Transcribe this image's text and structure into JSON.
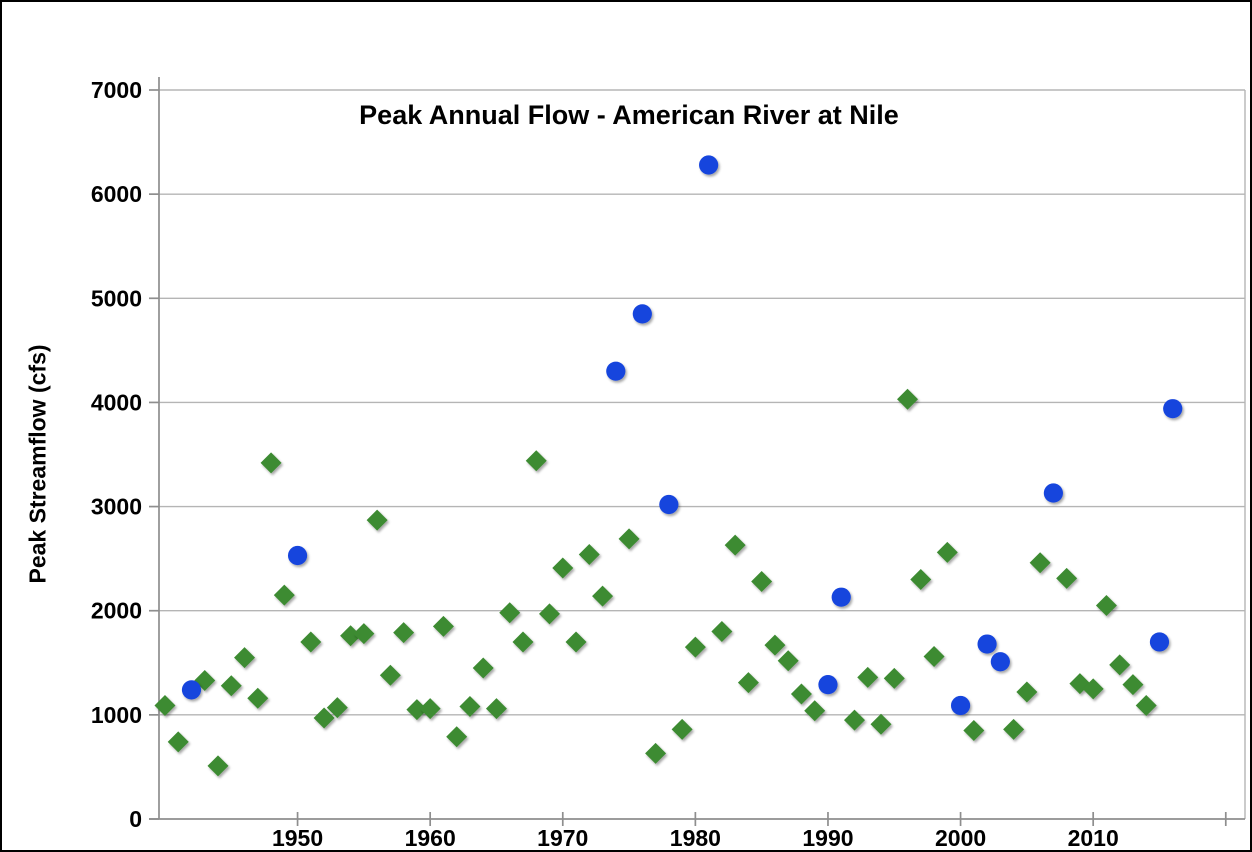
{
  "chart_data": {
    "type": "scatter",
    "title": "Peak Annual Flow - American River at Nile",
    "xlabel": "",
    "ylabel": "Peak Streamflow (cfs)",
    "xlim": [
      1939.55,
      2021.45
    ],
    "ylim": [
      0,
      7000
    ],
    "x_ticks": [
      1950,
      1960,
      1970,
      1980,
      1990,
      2000,
      2010
    ],
    "x_end_tick": 2020,
    "y_ticks": [
      0,
      1000,
      2000,
      3000,
      4000,
      5000,
      6000,
      7000
    ],
    "grid": "horizontal",
    "legend": "none",
    "style": {
      "grid_color": "#b5b5b5",
      "axis_color": "#8e8e8e",
      "text_color": "#000000",
      "background": "#ffffff",
      "green_marker": "#3e8b33",
      "blue_marker": "#1845dd"
    },
    "series": [
      {
        "name": "green-diamonds",
        "marker": "diamond",
        "color": "#3e8b33",
        "points": [
          [
            1940,
            1090
          ],
          [
            1941,
            740
          ],
          [
            1943,
            1330
          ],
          [
            1944,
            510
          ],
          [
            1945,
            1280
          ],
          [
            1946,
            1550
          ],
          [
            1947,
            1160
          ],
          [
            1948,
            3420
          ],
          [
            1949,
            2150
          ],
          [
            1951,
            1700
          ],
          [
            1952,
            970
          ],
          [
            1953,
            1070
          ],
          [
            1954,
            1760
          ],
          [
            1955,
            1780
          ],
          [
            1956,
            2870
          ],
          [
            1957,
            1380
          ],
          [
            1958,
            1790
          ],
          [
            1959,
            1050
          ],
          [
            1960,
            1060
          ],
          [
            1961,
            1850
          ],
          [
            1962,
            790
          ],
          [
            1963,
            1080
          ],
          [
            1964,
            1450
          ],
          [
            1965,
            1060
          ],
          [
            1966,
            1980
          ],
          [
            1967,
            1700
          ],
          [
            1968,
            3440
          ],
          [
            1969,
            1970
          ],
          [
            1970,
            2410
          ],
          [
            1971,
            1700
          ],
          [
            1972,
            2540
          ],
          [
            1973,
            2140
          ],
          [
            1975,
            2690
          ],
          [
            1977,
            630
          ],
          [
            1979,
            860
          ],
          [
            1980,
            1650
          ],
          [
            1982,
            1800
          ],
          [
            1983,
            2630
          ],
          [
            1984,
            1310
          ],
          [
            1985,
            2280
          ],
          [
            1986,
            1670
          ],
          [
            1987,
            1520
          ],
          [
            1988,
            1200
          ],
          [
            1989,
            1040
          ],
          [
            1992,
            950
          ],
          [
            1993,
            1360
          ],
          [
            1994,
            910
          ],
          [
            1995,
            1350
          ],
          [
            1996,
            4030
          ],
          [
            1997,
            2300
          ],
          [
            1998,
            1560
          ],
          [
            1999,
            2560
          ],
          [
            2001,
            850
          ],
          [
            2004,
            860
          ],
          [
            2005,
            1220
          ],
          [
            2006,
            2460
          ],
          [
            2008,
            2310
          ],
          [
            2009,
            1300
          ],
          [
            2010,
            1250
          ],
          [
            2011,
            2050
          ],
          [
            2012,
            1480
          ],
          [
            2013,
            1290
          ],
          [
            2014,
            1090
          ]
        ]
      },
      {
        "name": "blue-circles",
        "marker": "circle",
        "color": "#1845dd",
        "points": [
          [
            1942,
            1240
          ],
          [
            1950,
            2530
          ],
          [
            1974,
            4300
          ],
          [
            1976,
            4850
          ],
          [
            1978,
            3020
          ],
          [
            1981,
            6280
          ],
          [
            1990,
            1290
          ],
          [
            1991,
            2130
          ],
          [
            2000,
            1090
          ],
          [
            2002,
            1680
          ],
          [
            2003,
            1510
          ],
          [
            2007,
            3130
          ],
          [
            2015,
            1700
          ],
          [
            2016,
            3940
          ]
        ]
      }
    ]
  }
}
